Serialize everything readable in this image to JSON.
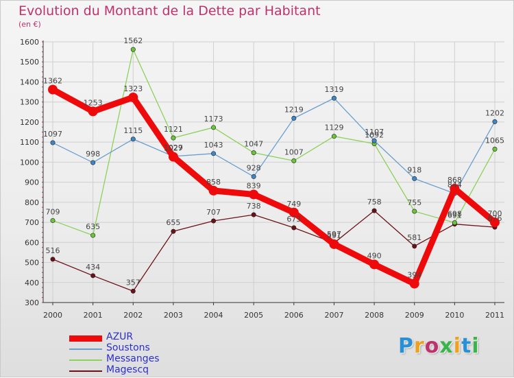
{
  "header": {
    "title": "Evolution du Montant de la Dette par Habitant",
    "subtitle": "(en €)"
  },
  "colors": {
    "title": "#c0316b",
    "legend_text": "#2e2ecc",
    "gridline": "#cfcfcf",
    "axis": "#333333",
    "tick_marks": "#c0316b"
  },
  "brand": {
    "text": [
      "P",
      "r",
      "o",
      "x",
      "i",
      "t",
      "i"
    ],
    "colors": [
      "#2b8fd6",
      "#f0a020",
      "#c0316b",
      "#3ab54a",
      "#f0a020",
      "#2b8fd6",
      "#3ab54a"
    ]
  },
  "chart_data": {
    "type": "line",
    "title": "Evolution du Montant de la Dette par Habitant",
    "subtitle": "(en €)",
    "x": [
      "2000",
      "2001",
      "2002",
      "2003",
      "2004",
      "2005",
      "2006",
      "2007",
      "2008",
      "2009",
      "2010",
      "2011"
    ],
    "ylim": [
      300,
      1600
    ],
    "yticks": [
      300,
      400,
      500,
      600,
      700,
      800,
      900,
      1000,
      1100,
      1200,
      1300,
      1400,
      1500,
      1600
    ],
    "grid": true,
    "legend_position": "bottom-left",
    "series": [
      {
        "name": "Magescq",
        "color": "#6b1219",
        "dot_color": "#6b1219",
        "thick": false,
        "values": [
          516,
          434,
          357,
          655,
          707,
          738,
          673,
          597,
          758,
          581,
          691,
          676
        ],
        "labels": [
          "516",
          "434",
          "357",
          "655",
          "707",
          "738",
          "673",
          "597",
          "758",
          "581",
          "691",
          "676"
        ]
      },
      {
        "name": "Messanges",
        "color": "#8cd15a",
        "dot_color": "#6cc43a",
        "thick": false,
        "values": [
          709,
          635,
          1562,
          1121,
          1173,
          1047,
          1007,
          1129,
          1092,
          755,
          698,
          1065
        ],
        "labels": [
          "709",
          "635",
          "1562",
          "1121",
          "1173",
          "1047",
          "1007",
          "1129",
          "1092",
          "755",
          "698",
          "1065"
        ]
      },
      {
        "name": "Soustons",
        "color": "#6a9fcf",
        "dot_color": "#3f86c6",
        "thick": false,
        "values": [
          1097,
          998,
          1115,
          1029,
          1043,
          928,
          1219,
          1319,
          1107,
          918,
          844,
          1202
        ],
        "labels": [
          "1097",
          "998",
          "1115",
          "1029",
          "1043",
          "928",
          "1219",
          "1319",
          "1107",
          "918",
          "844",
          "1202"
        ]
      },
      {
        "name": "AZUR",
        "color": "#ee0a0a",
        "dot_color": "#ee0a0a",
        "thick": true,
        "values": [
          1362,
          1253,
          1323,
          1027,
          858,
          839,
          749,
          591,
          490,
          394,
          868,
          700
        ],
        "labels": [
          "1362",
          "1253",
          "1323",
          "1027",
          "858",
          "839",
          "749",
          "591",
          "490",
          "394",
          "868",
          "700"
        ]
      }
    ],
    "legend": [
      "AZUR",
      "Soustons",
      "Messanges",
      "Magescq"
    ]
  }
}
